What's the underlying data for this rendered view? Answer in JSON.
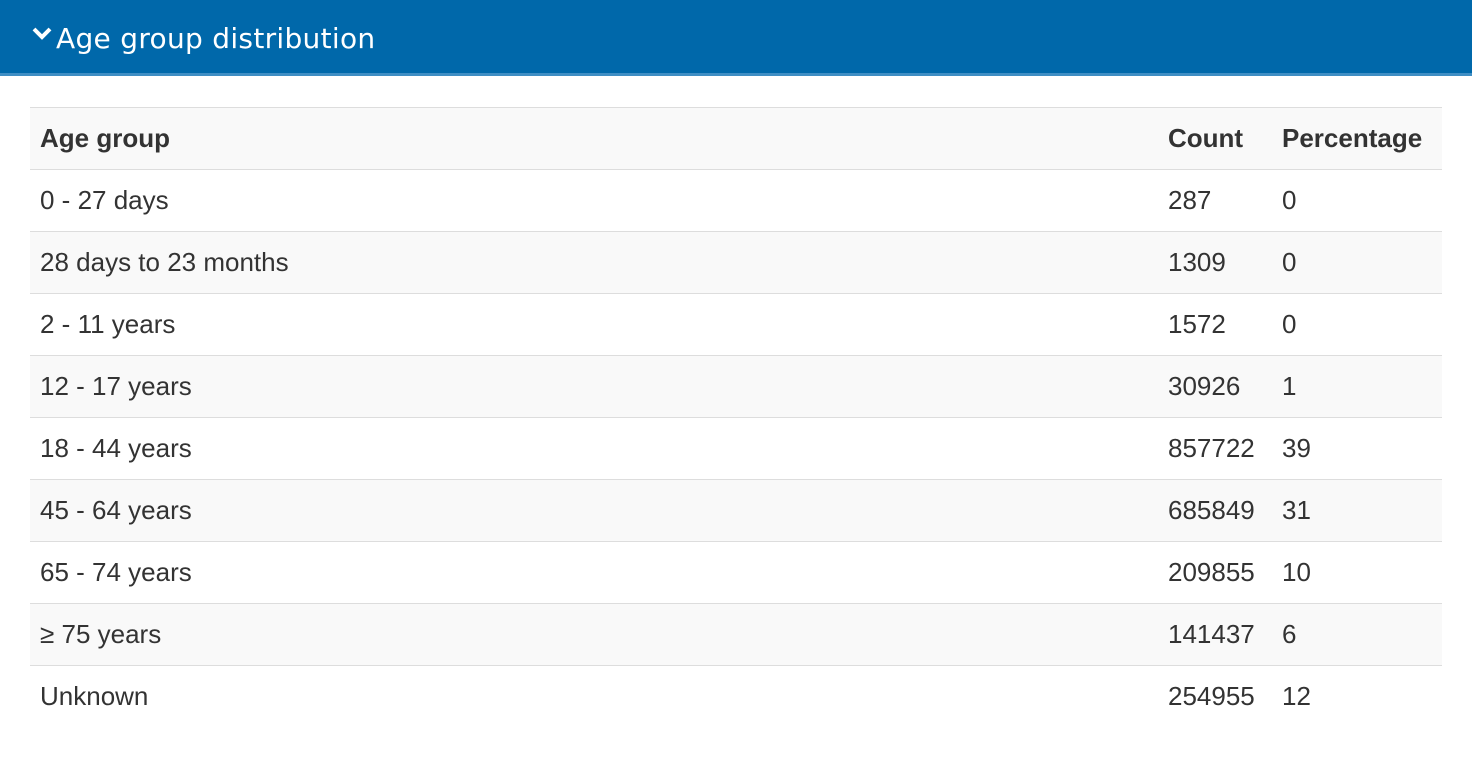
{
  "header": {
    "title": "Age group distribution"
  },
  "table": {
    "columns": [
      "Age group",
      "Count",
      "Percentage"
    ],
    "rows": [
      [
        "0 - 27 days",
        287,
        0
      ],
      [
        "28 days to 23 months",
        1309,
        0
      ],
      [
        "2 - 11 years",
        1572,
        0
      ],
      [
        "12 - 17 years",
        30926,
        1
      ],
      [
        "18 - 44 years",
        857722,
        39
      ],
      [
        "45 - 64 years",
        685849,
        31
      ],
      [
        "65 - 74 years",
        209855,
        10
      ],
      [
        "≥ 75 years",
        141437,
        6
      ],
      [
        "Unknown",
        254955,
        12
      ]
    ]
  }
}
